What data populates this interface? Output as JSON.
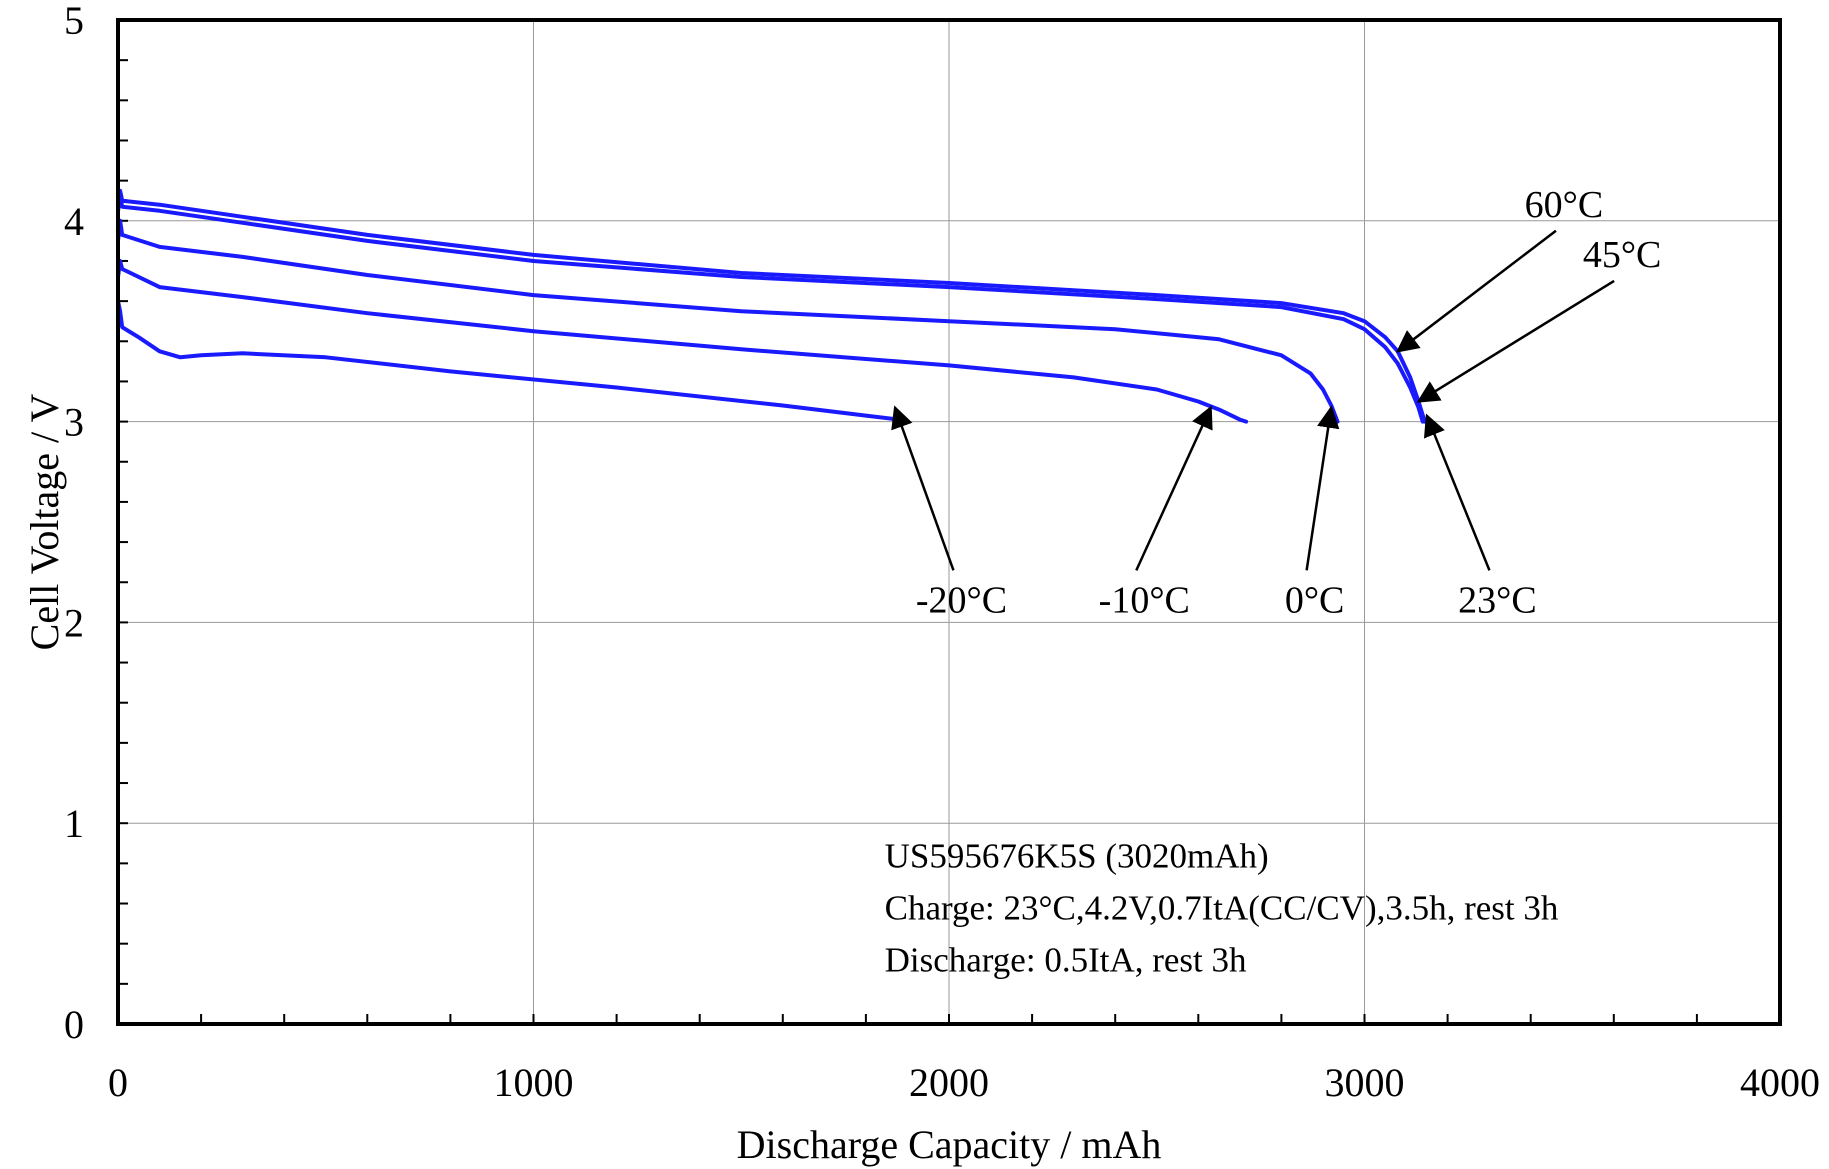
{
  "chart_data": {
    "type": "line",
    "xlabel": "Discharge Capacity / mAh",
    "ylabel": "Cell Voltage / V",
    "xlim": [
      0,
      4000
    ],
    "ylim": [
      0,
      5
    ],
    "x_ticks": [
      0,
      1000,
      2000,
      3000,
      4000
    ],
    "y_ticks": [
      0,
      1,
      2,
      3,
      4,
      5
    ],
    "grid": true,
    "line_color": "#1a1aff",
    "series": [
      {
        "name": "60°C",
        "x": [
          0,
          5,
          10,
          100,
          300,
          600,
          1000,
          1500,
          2000,
          2500,
          2800,
          2950,
          3000,
          3050,
          3080,
          3110,
          3130,
          3145
        ],
        "y": [
          4.05,
          4.15,
          4.1,
          4.08,
          4.02,
          3.93,
          3.83,
          3.74,
          3.69,
          3.63,
          3.59,
          3.54,
          3.5,
          3.42,
          3.35,
          3.22,
          3.1,
          3.0
        ]
      },
      {
        "name": "45°C",
        "x": [
          0,
          5,
          10,
          100,
          300,
          600,
          1000,
          1500,
          2000,
          2500,
          2800,
          2950,
          3000,
          3050,
          3080,
          3110,
          3130,
          3140
        ],
        "y": [
          4.05,
          4.12,
          4.07,
          4.05,
          3.99,
          3.9,
          3.8,
          3.72,
          3.67,
          3.61,
          3.57,
          3.51,
          3.46,
          3.37,
          3.29,
          3.17,
          3.07,
          3.0
        ]
      },
      {
        "name": "23°C",
        "x": [
          0,
          5,
          10,
          100,
          300,
          600,
          1000,
          1500,
          2000,
          2400,
          2650,
          2800,
          2870,
          2900,
          2920,
          2935
        ],
        "y": [
          3.9,
          4.0,
          3.93,
          3.87,
          3.82,
          3.73,
          3.63,
          3.55,
          3.5,
          3.46,
          3.41,
          3.33,
          3.24,
          3.16,
          3.08,
          3.0
        ]
      },
      {
        "name": "0°C",
        "x": [
          0,
          5,
          10,
          100,
          300,
          600,
          1000,
          1500,
          2000,
          2300,
          2500,
          2600,
          2650,
          2700,
          2715
        ],
        "y": [
          3.72,
          3.8,
          3.76,
          3.67,
          3.62,
          3.54,
          3.45,
          3.36,
          3.28,
          3.22,
          3.16,
          3.1,
          3.06,
          3.01,
          3.0
        ]
      },
      {
        "name": "-10°C",
        "x": [
          0,
          5,
          10,
          50,
          100,
          150,
          200,
          300,
          500,
          800,
          1200,
          1600,
          1800,
          1880,
          1890
        ],
        "y": [
          3.6,
          3.55,
          3.47,
          3.42,
          3.35,
          3.32,
          3.33,
          3.34,
          3.32,
          3.25,
          3.17,
          3.08,
          3.03,
          3.01,
          3.0
        ]
      }
    ],
    "annotations": [
      {
        "text": "60°C",
        "text_x": 3480,
        "text_y": 4.02,
        "target_x": 3080,
        "target_y": 3.35
      },
      {
        "text": "45°C",
        "text_x": 3620,
        "text_y": 3.77,
        "target_x": 3130,
        "target_y": 3.1
      },
      {
        "text": "-20°C",
        "text_x": 2030,
        "text_y": 2.05,
        "target_x": 1870,
        "target_y": 3.07
      },
      {
        "text": "-10°C",
        "text_x": 2470,
        "text_y": 2.05,
        "target_x": 2630,
        "target_y": 3.07
      },
      {
        "text": "0°C",
        "text_x": 2880,
        "text_y": 2.05,
        "target_x": 2920,
        "target_y": 3.07
      },
      {
        "text": "23°C",
        "text_x": 3320,
        "text_y": 2.05,
        "target_x": 3150,
        "target_y": 3.03
      }
    ],
    "notes": [
      "US595676K5S (3020mAh)",
      "Charge: 23°C,4.2V,0.7ItA(CC/CV),3.5h, rest 3h",
      "Discharge: 0.5ItA, rest 3h"
    ]
  }
}
